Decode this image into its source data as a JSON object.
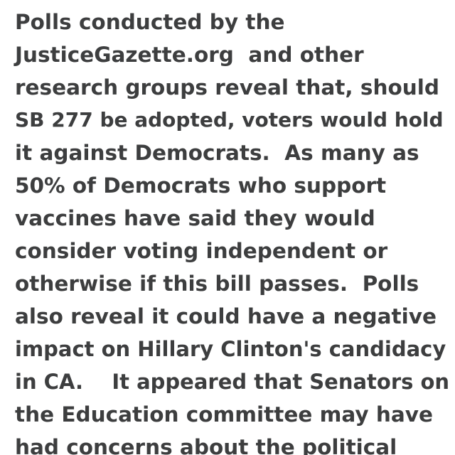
{
  "article": {
    "lines": [
      "Polls conducted by the",
      "JusticeGazette.org  and other",
      "research groups reveal that, should",
      "SB 277 be adopted, voters would hold",
      "it against Democrats.  As many as",
      "50% of Democrats who support",
      "vaccines have said they would",
      "consider voting independent or",
      "otherwise if this bill passes.  Polls",
      "also reveal it could have a negative",
      "impact on Hillary Clinton's candidacy",
      "in CA.    It appeared that Senators on",
      "the Education committee may have",
      "had concerns about the political"
    ]
  }
}
